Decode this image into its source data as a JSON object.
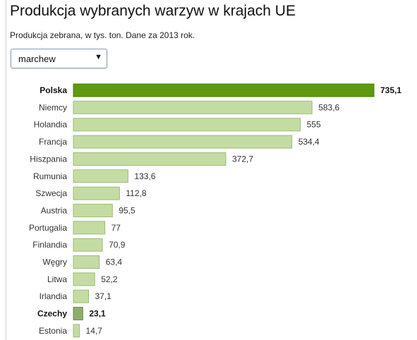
{
  "header": {
    "title": "Produkcja wybranych warzyw w krajach UE",
    "subtitle": "Produkcja zebrana, w tys. ton. Dane za 2013 rok."
  },
  "selector": {
    "value": "marchew",
    "arrow_icon": "triangle-down-icon"
  },
  "colors": {
    "bar_default": "#c4dca3",
    "bar_default_border": "#9dbb79",
    "bar_primary": "#5e9a0f",
    "bar_primary_border": "#4a7d08",
    "bar_secondary": "#91ac6f",
    "bar_secondary_border": "#6f8a4e"
  },
  "chart_data": {
    "type": "bar",
    "orientation": "horizontal",
    "title": "Produkcja wybranych warzyw w krajach UE",
    "subtitle": "Produkcja zebrana, w tys. ton. Dane za 2013 rok.",
    "categories": [
      "Polska",
      "Niemcy",
      "Holandia",
      "Francja",
      "Hiszpania",
      "Rumunia",
      "Szwecja",
      "Austria",
      "Portugalia",
      "Finlandia",
      "Węgry",
      "Litwa",
      "Irlandia",
      "Czechy",
      "Estonia"
    ],
    "values": [
      735.1,
      583.6,
      555,
      534.4,
      372.7,
      133.6,
      112.8,
      95.5,
      77,
      70.9,
      63.4,
      52.2,
      37.1,
      23.1,
      14.7
    ],
    "value_labels": [
      "735,1",
      "583,6",
      "555",
      "534,4",
      "372,7",
      "133,6",
      "112,8",
      "95,5",
      "77",
      "70,9",
      "63,4",
      "52,2",
      "37,1",
      "23,1",
      "14,7"
    ],
    "highlight": {
      "Polska": "primary",
      "Czechy": "secondary"
    },
    "xlim": [
      0,
      735.1
    ],
    "grid": false,
    "legend": "none"
  }
}
